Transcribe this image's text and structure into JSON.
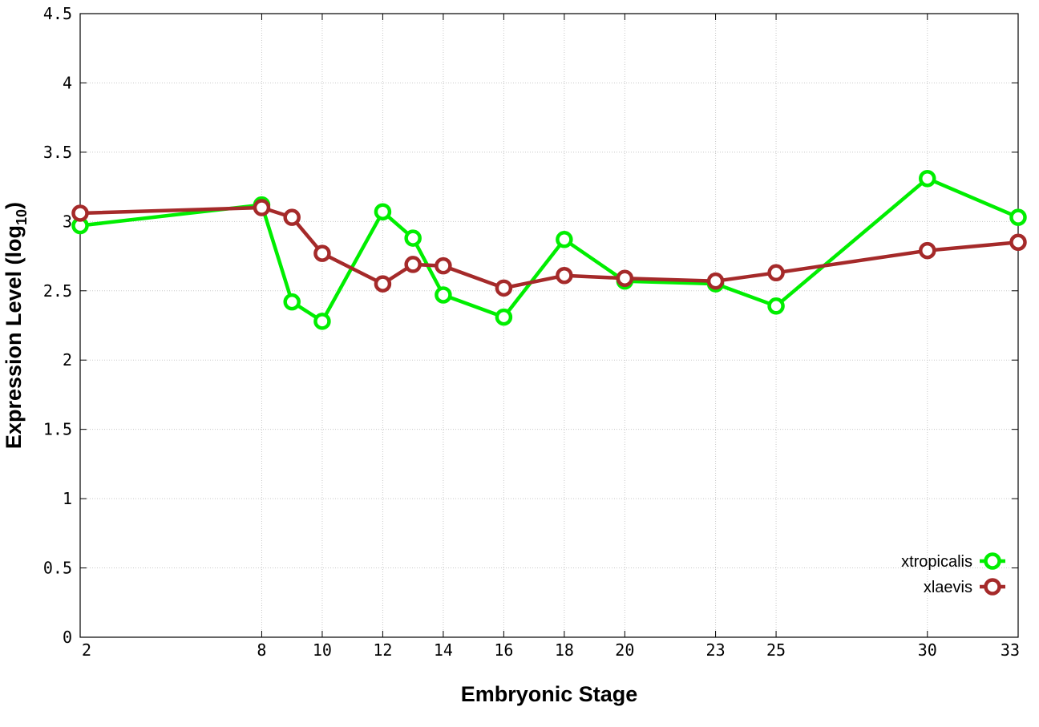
{
  "chart_data": {
    "type": "line",
    "title": "",
    "xlabel": "Embryonic Stage",
    "ylabel": "Expression Level (log",
    "ylabel_sub": "10",
    "ylabel_close": ")",
    "xlim": [
      2,
      33
    ],
    "ylim": [
      0,
      4.5
    ],
    "x_ticks": [
      2,
      8,
      10,
      12,
      14,
      16,
      18,
      20,
      23,
      25,
      30,
      33
    ],
    "x_tick_labels": [
      "2",
      "8",
      "10",
      "12",
      "14",
      "16",
      "18",
      "20",
      "23",
      "25",
      "30",
      "33"
    ],
    "y_ticks": [
      0,
      0.5,
      1,
      1.5,
      2,
      2.5,
      3,
      3.5,
      4,
      4.5
    ],
    "y_tick_labels": [
      "0",
      "0.5",
      "1",
      "1.5",
      "2",
      "2.5",
      "3",
      "3.5",
      "4",
      "4.5"
    ],
    "grid": true,
    "legend_position": "bottom-right",
    "series": [
      {
        "name": "xtropicalis",
        "color": "#00ee00",
        "x": [
          2,
          8,
          9,
          10,
          12,
          13,
          14,
          16,
          18,
          20,
          23,
          25,
          30,
          33
        ],
        "values": [
          2.97,
          3.12,
          2.42,
          2.28,
          3.07,
          2.88,
          2.47,
          2.31,
          2.87,
          2.57,
          2.55,
          2.39,
          3.31,
          3.03
        ]
      },
      {
        "name": "xlaevis",
        "color": "#a52a2a",
        "x": [
          2,
          8,
          9,
          10,
          12,
          13,
          14,
          16,
          18,
          20,
          23,
          25,
          30,
          33
        ],
        "values": [
          3.06,
          3.1,
          3.03,
          2.77,
          2.55,
          2.69,
          2.68,
          2.52,
          2.61,
          2.59,
          2.57,
          2.63,
          2.79,
          2.85
        ]
      }
    ]
  }
}
